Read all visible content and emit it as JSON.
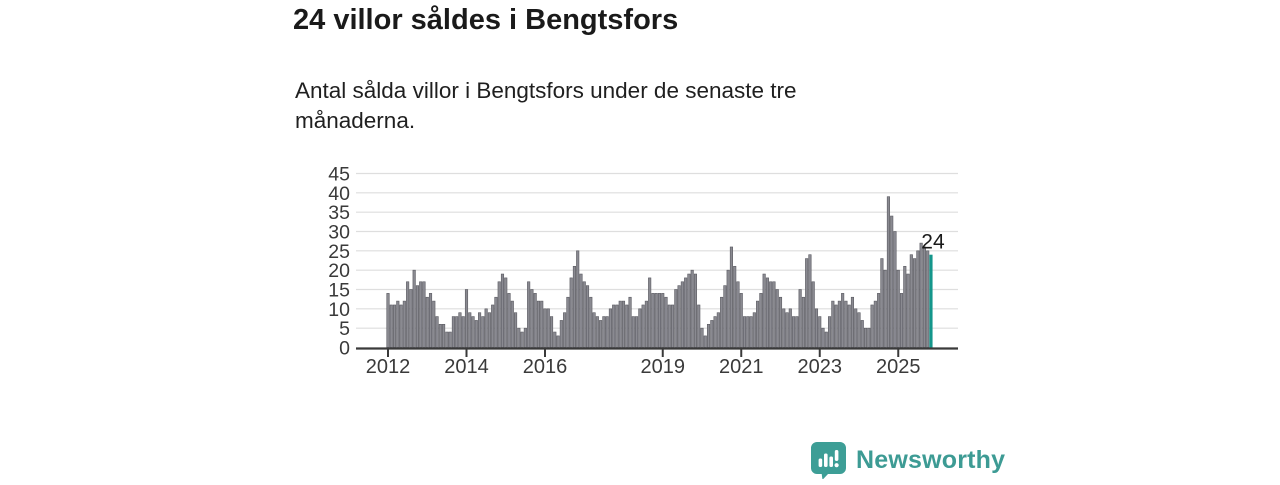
{
  "title": "24 villor såldes i Bengtsfors",
  "subtitle": "Antal sålda villor i Bengtsfors under de senaste tre månaderna.",
  "branding": {
    "logo_text": "Newsworthy",
    "logo_icon": "bar-chart-speech-bubble-icon",
    "color": "#3d9b94"
  },
  "chart_data": {
    "type": "bar",
    "title": "24 villor såldes i Bengtsfors",
    "xlabel": "",
    "ylabel": "",
    "frequency": "monthly",
    "x_start": "2012-01",
    "x_end": "2025-11",
    "ylim": [
      0,
      45
    ],
    "yticks": [
      0,
      5,
      10,
      15,
      20,
      25,
      30,
      35,
      40,
      45
    ],
    "xticks": [
      2012,
      2014,
      2016,
      2019,
      2021,
      2023,
      2025
    ],
    "grid": true,
    "bar_color": "#8a8a91",
    "bar_stroke": "#5a5a61",
    "highlight": {
      "index": 166,
      "value": 24,
      "label": "24",
      "color": "#14968b"
    },
    "values": [
      14,
      11,
      11,
      12,
      11,
      12,
      17,
      15,
      20,
      16,
      17,
      17,
      13,
      14,
      12,
      8,
      6,
      6,
      4,
      4,
      8,
      8,
      9,
      8,
      15,
      9,
      8,
      7,
      9,
      8,
      10,
      9,
      11,
      13,
      17,
      19,
      18,
      14,
      12,
      9,
      5,
      4,
      5,
      17,
      15,
      14,
      12,
      12,
      10,
      10,
      8,
      4,
      3,
      7,
      9,
      13,
      18,
      21,
      25,
      19,
      17,
      16,
      13,
      9,
      8,
      7,
      8,
      8,
      10,
      11,
      11,
      12,
      12,
      11,
      13,
      8,
      8,
      10,
      11,
      12,
      18,
      14,
      14,
      14,
      14,
      13,
      11,
      11,
      15,
      16,
      17,
      18,
      19,
      20,
      19,
      11,
      5,
      3,
      6,
      7,
      8,
      9,
      13,
      16,
      20,
      26,
      21,
      17,
      14,
      8,
      8,
      8,
      9,
      12,
      14,
      19,
      18,
      17,
      17,
      15,
      13,
      10,
      9,
      10,
      8,
      8,
      15,
      13,
      23,
      24,
      17,
      10,
      8,
      5,
      4,
      8,
      12,
      11,
      12,
      14,
      12,
      11,
      13,
      10,
      9,
      7,
      5,
      5,
      11,
      12,
      14,
      23,
      20,
      39,
      34,
      30,
      20,
      14,
      21,
      19,
      24,
      23,
      25,
      27,
      26,
      25,
      24
    ]
  }
}
